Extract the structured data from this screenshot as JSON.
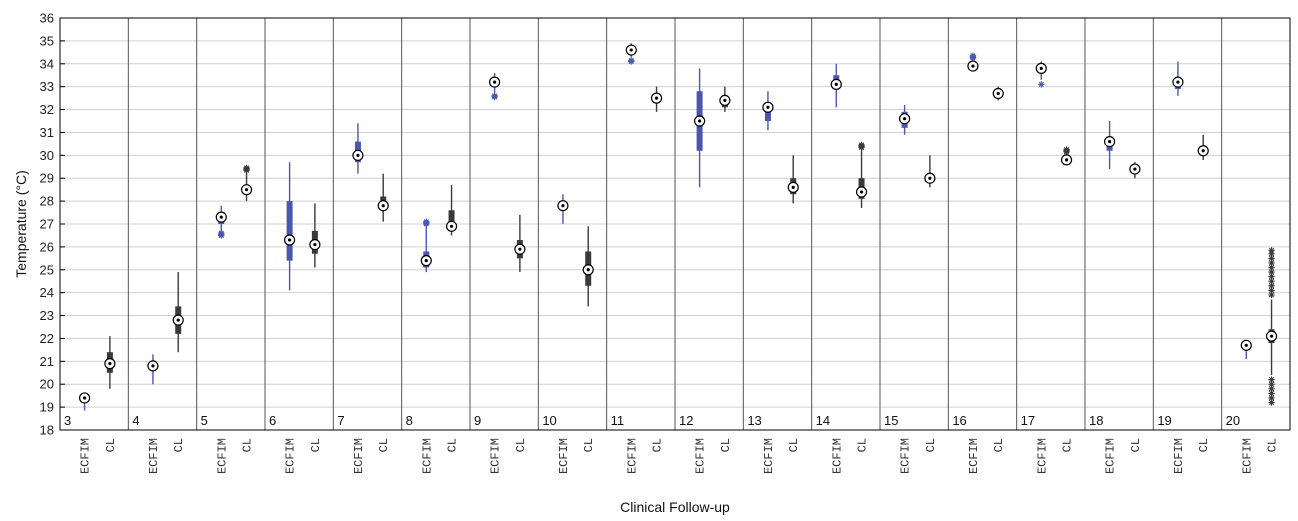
{
  "chart_data": {
    "type": "box",
    "ylabel": "Temperature (°C)",
    "xlabel": "Clinical Follow-up",
    "ylim": [
      18,
      36
    ],
    "yticks": [
      18,
      19,
      20,
      21,
      22,
      23,
      24,
      25,
      26,
      27,
      28,
      29,
      30,
      31,
      32,
      33,
      34,
      35,
      36
    ],
    "grid": "horizontal",
    "categories": [
      "ECFIM",
      "CL"
    ],
    "colors": {
      "ECFIM": "#4a56b0",
      "CL": "#3a3a3a"
    },
    "groups": [
      {
        "label": "3",
        "ECFIM": {
          "whisker_low": 18.85,
          "q1": 19.3,
          "median": 19.4,
          "q3": 19.5,
          "whisker_high": 19.6,
          "outliers": []
        },
        "CL": {
          "whisker_low": 19.8,
          "q1": 20.5,
          "median": 20.9,
          "q3": 21.4,
          "whisker_high": 22.1,
          "outliers": []
        }
      },
      {
        "label": "4",
        "ECFIM": {
          "whisker_low": 20.0,
          "q1": 20.6,
          "median": 20.8,
          "q3": 21.0,
          "whisker_high": 21.3,
          "outliers": []
        },
        "CL": {
          "whisker_low": 21.4,
          "q1": 22.2,
          "median": 22.8,
          "q3": 23.4,
          "whisker_high": 24.9,
          "outliers": []
        }
      },
      {
        "label": "5",
        "ECFIM": {
          "whisker_low": 26.6,
          "q1": 27.0,
          "median": 27.3,
          "q3": 27.5,
          "whisker_high": 27.8,
          "outliers": [
            26.5,
            26.55,
            26.6
          ]
        },
        "CL": {
          "whisker_low": 28.0,
          "q1": 28.4,
          "median": 28.5,
          "q3": 28.7,
          "whisker_high": 29.3,
          "outliers": [
            29.35,
            29.4,
            29.45
          ]
        }
      },
      {
        "label": "6",
        "ECFIM": {
          "whisker_low": 24.1,
          "q1": 25.4,
          "median": 26.3,
          "q3": 28.0,
          "whisker_high": 29.7,
          "outliers": []
        },
        "CL": {
          "whisker_low": 25.1,
          "q1": 25.7,
          "median": 26.1,
          "q3": 26.7,
          "whisker_high": 27.9,
          "outliers": []
        }
      },
      {
        "label": "7",
        "ECFIM": {
          "whisker_low": 29.2,
          "q1": 29.7,
          "median": 30.0,
          "q3": 30.6,
          "whisker_high": 31.4,
          "outliers": []
        },
        "CL": {
          "whisker_low": 27.1,
          "q1": 27.6,
          "median": 27.8,
          "q3": 28.2,
          "whisker_high": 29.2,
          "outliers": []
        }
      },
      {
        "label": "8",
        "ECFIM": {
          "whisker_low": 24.9,
          "q1": 25.1,
          "median": 25.4,
          "q3": 25.8,
          "whisker_high": 26.9,
          "outliers": [
            27.0,
            27.05,
            27.1
          ]
        },
        "CL": {
          "whisker_low": 26.5,
          "q1": 26.7,
          "median": 26.9,
          "q3": 27.6,
          "whisker_high": 28.7,
          "outliers": []
        }
      },
      {
        "label": "9",
        "ECFIM": {
          "whisker_low": 32.7,
          "q1": 33.0,
          "median": 33.2,
          "q3": 33.3,
          "whisker_high": 33.6,
          "outliers": [
            32.55,
            32.6
          ]
        },
        "CL": {
          "whisker_low": 24.9,
          "q1": 25.5,
          "median": 25.9,
          "q3": 26.3,
          "whisker_high": 27.4,
          "outliers": []
        }
      },
      {
        "label": "10",
        "ECFIM": {
          "whisker_low": 27.0,
          "q1": 27.6,
          "median": 27.8,
          "q3": 27.9,
          "whisker_high": 28.3,
          "outliers": []
        },
        "CL": {
          "whisker_low": 23.4,
          "q1": 24.3,
          "median": 25.0,
          "q3": 25.8,
          "whisker_high": 26.9,
          "outliers": []
        }
      },
      {
        "label": "11",
        "ECFIM": {
          "whisker_low": 34.3,
          "q1": 34.5,
          "median": 34.6,
          "q3": 34.7,
          "whisker_high": 34.9,
          "outliers": [
            34.1,
            34.15
          ]
        },
        "CL": {
          "whisker_low": 31.9,
          "q1": 32.3,
          "median": 32.5,
          "q3": 32.7,
          "whisker_high": 33.0,
          "outliers": []
        }
      },
      {
        "label": "12",
        "ECFIM": {
          "whisker_low": 28.6,
          "q1": 30.2,
          "median": 31.5,
          "q3": 32.8,
          "whisker_high": 33.8,
          "outliers": []
        },
        "CL": {
          "whisker_low": 31.9,
          "q1": 32.1,
          "median": 32.4,
          "q3": 32.6,
          "whisker_high": 33.0,
          "outliers": []
        }
      },
      {
        "label": "13",
        "ECFIM": {
          "whisker_low": 31.1,
          "q1": 31.5,
          "median": 32.1,
          "q3": 32.3,
          "whisker_high": 32.8,
          "outliers": []
        },
        "CL": {
          "whisker_low": 27.9,
          "q1": 28.3,
          "median": 28.6,
          "q3": 29.0,
          "whisker_high": 30.0,
          "outliers": []
        }
      },
      {
        "label": "14",
        "ECFIM": {
          "whisker_low": 32.1,
          "q1": 33.0,
          "median": 33.1,
          "q3": 33.5,
          "whisker_high": 34.0,
          "outliers": []
        },
        "CL": {
          "whisker_low": 27.7,
          "q1": 28.1,
          "median": 28.4,
          "q3": 29.0,
          "whisker_high": 30.3,
          "outliers": [
            30.35,
            30.4,
            30.45
          ]
        }
      },
      {
        "label": "15",
        "ECFIM": {
          "whisker_low": 30.9,
          "q1": 31.2,
          "median": 31.6,
          "q3": 31.9,
          "whisker_high": 32.2,
          "outliers": []
        },
        "CL": {
          "whisker_low": 28.6,
          "q1": 28.9,
          "median": 29.0,
          "q3": 29.2,
          "whisker_high": 30.0,
          "outliers": []
        }
      },
      {
        "label": "16",
        "ECFIM": {
          "whisker_low": 33.7,
          "q1": 33.8,
          "median": 33.9,
          "q3": 34.0,
          "whisker_high": 34.2,
          "outliers": [
            34.25,
            34.3,
            34.35
          ]
        },
        "CL": {
          "whisker_low": 32.4,
          "q1": 32.6,
          "median": 32.7,
          "q3": 32.8,
          "whisker_high": 33.0,
          "outliers": []
        }
      },
      {
        "label": "17",
        "ECFIM": {
          "whisker_low": 33.3,
          "q1": 33.6,
          "median": 33.8,
          "q3": 33.9,
          "whisker_high": 34.1,
          "outliers": [
            33.1
          ]
        },
        "CL": {
          "whisker_low": 29.6,
          "q1": 29.7,
          "median": 29.8,
          "q3": 29.9,
          "whisker_high": 30.1,
          "outliers": [
            30.15,
            30.2,
            30.25
          ]
        }
      },
      {
        "label": "18",
        "ECFIM": {
          "whisker_low": 29.4,
          "q1": 30.2,
          "median": 30.6,
          "q3": 30.8,
          "whisker_high": 31.5,
          "outliers": []
        },
        "CL": {
          "whisker_low": 29.0,
          "q1": 29.2,
          "median": 29.4,
          "q3": 29.5,
          "whisker_high": 29.7,
          "outliers": []
        }
      },
      {
        "label": "19",
        "ECFIM": {
          "whisker_low": 32.6,
          "q1": 32.9,
          "median": 33.2,
          "q3": 33.4,
          "whisker_high": 34.1,
          "outliers": []
        },
        "CL": {
          "whisker_low": 29.8,
          "q1": 30.0,
          "median": 30.2,
          "q3": 30.4,
          "whisker_high": 30.9,
          "outliers": []
        }
      },
      {
        "label": "20",
        "ECFIM": {
          "whisker_low": 21.1,
          "q1": 21.5,
          "median": 21.7,
          "q3": 21.8,
          "whisker_high": 21.9,
          "outliers": []
        },
        "CL": {
          "whisker_low": 20.4,
          "q1": 21.8,
          "median": 22.1,
          "q3": 22.4,
          "whisker_high": 23.7,
          "outliers": [
            19.2,
            19.4,
            19.6,
            19.8,
            20.0,
            20.2,
            23.9,
            24.1,
            24.3,
            24.5,
            24.7,
            24.9,
            25.1,
            25.3,
            25.5,
            25.7,
            25.85
          ]
        }
      }
    ]
  }
}
